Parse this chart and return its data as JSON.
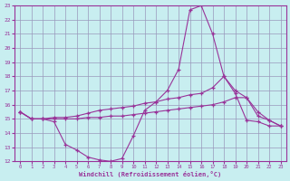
{
  "xlabel": "Windchill (Refroidissement éolien,°C)",
  "bg_color": "#c8eef0",
  "grid_color": "#9999bb",
  "line_color": "#993399",
  "xlim": [
    -0.5,
    23.5
  ],
  "ylim": [
    12,
    23
  ],
  "xticks": [
    0,
    1,
    2,
    3,
    4,
    5,
    6,
    7,
    8,
    9,
    10,
    11,
    12,
    13,
    14,
    15,
    16,
    17,
    18,
    19,
    20,
    21,
    22,
    23
  ],
  "yticks": [
    12,
    13,
    14,
    15,
    16,
    17,
    18,
    19,
    20,
    21,
    22,
    23
  ],
  "line1_x": [
    0,
    1,
    2,
    3,
    4,
    5,
    6,
    7,
    8,
    9,
    10,
    11,
    12,
    13,
    14,
    15,
    16,
    17,
    18,
    19,
    20,
    21,
    22,
    23
  ],
  "line1_y": [
    15.5,
    15.0,
    15.0,
    14.8,
    13.2,
    12.8,
    12.3,
    12.1,
    12.0,
    12.2,
    13.8,
    15.6,
    16.2,
    17.0,
    18.5,
    22.7,
    23.0,
    21.0,
    18.0,
    16.8,
    14.9,
    14.8,
    14.5,
    14.5
  ],
  "line2_x": [
    0,
    1,
    2,
    3,
    4,
    5,
    6,
    7,
    8,
    9,
    10,
    11,
    12,
    13,
    14,
    15,
    16,
    17,
    18,
    19,
    20,
    21,
    22,
    23
  ],
  "line2_y": [
    15.5,
    15.0,
    15.0,
    15.1,
    15.1,
    15.2,
    15.4,
    15.6,
    15.7,
    15.8,
    15.9,
    16.1,
    16.2,
    16.4,
    16.5,
    16.7,
    16.8,
    17.2,
    18.0,
    17.0,
    16.5,
    15.5,
    14.9,
    14.5
  ],
  "line3_x": [
    0,
    1,
    2,
    3,
    4,
    5,
    6,
    7,
    8,
    9,
    10,
    11,
    12,
    13,
    14,
    15,
    16,
    17,
    18,
    19,
    20,
    21,
    22,
    23
  ],
  "line3_y": [
    15.5,
    15.0,
    15.0,
    15.0,
    15.0,
    15.0,
    15.1,
    15.1,
    15.2,
    15.2,
    15.3,
    15.4,
    15.5,
    15.6,
    15.7,
    15.8,
    15.9,
    16.0,
    16.2,
    16.5,
    16.5,
    15.2,
    14.9,
    14.5
  ]
}
